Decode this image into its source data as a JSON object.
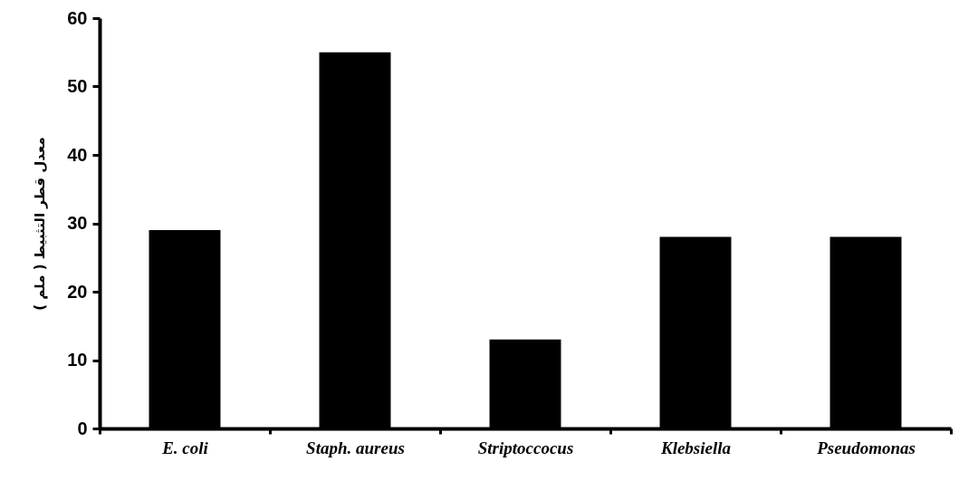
{
  "chart_data": {
    "type": "bar",
    "ylabel": "معدل قطر التثبيط ( ملم )",
    "categories": [
      "E. coli",
      "Staph. aureus",
      "Striptoccocus",
      "Klebsiella",
      "Pseudomonas"
    ],
    "values": [
      29,
      55,
      13,
      28,
      28
    ],
    "color": "#000000",
    "ylim": [
      0,
      60
    ],
    "yticks": [
      0,
      10,
      20,
      30,
      40,
      50,
      60
    ],
    "grid": false
  }
}
